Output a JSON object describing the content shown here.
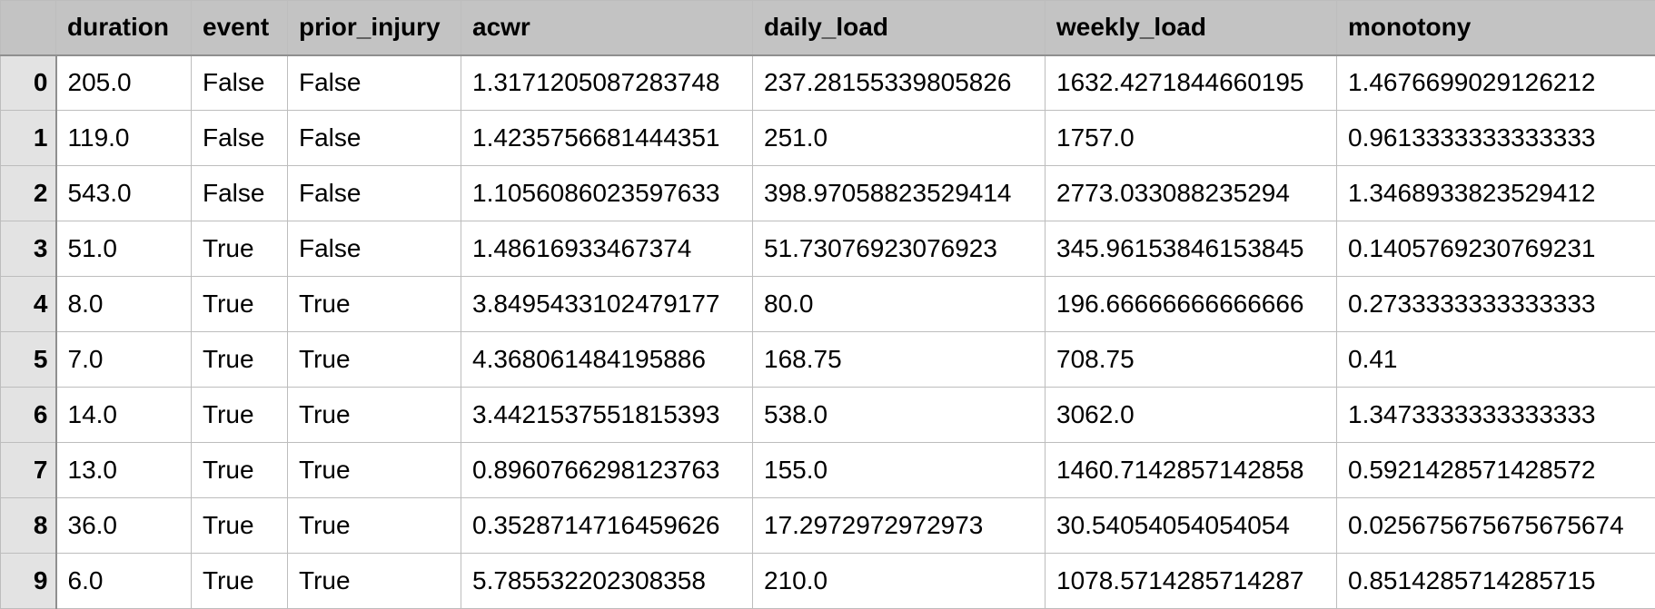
{
  "table": {
    "index_header": "",
    "columns": [
      "duration",
      "event",
      "prior_injury",
      "acwr",
      "daily_load",
      "weekly_load",
      "monotony"
    ],
    "rows": [
      {
        "index": "0",
        "cells": [
          "205.0",
          "False",
          "False",
          "1.3171205087283748",
          "237.28155339805826",
          "1632.4271844660195",
          "1.4676699029126212"
        ]
      },
      {
        "index": "1",
        "cells": [
          "119.0",
          "False",
          "False",
          "1.4235756681444351",
          "251.0",
          "1757.0",
          "0.9613333333333333"
        ]
      },
      {
        "index": "2",
        "cells": [
          "543.0",
          "False",
          "False",
          "1.1056086023597633",
          "398.97058823529414",
          "2773.033088235294",
          "1.3468933823529412"
        ]
      },
      {
        "index": "3",
        "cells": [
          "51.0",
          "True",
          "False",
          "1.48616933467374",
          "51.73076923076923",
          "345.96153846153845",
          "0.1405769230769231"
        ]
      },
      {
        "index": "4",
        "cells": [
          "8.0",
          "True",
          "True",
          "3.8495433102479177",
          "80.0",
          "196.66666666666666",
          "0.2733333333333333"
        ]
      },
      {
        "index": "5",
        "cells": [
          "7.0",
          "True",
          "True",
          "4.368061484195886",
          "168.75",
          "708.75",
          "0.41"
        ]
      },
      {
        "index": "6",
        "cells": [
          "14.0",
          "True",
          "True",
          "3.4421537551815393",
          "538.0",
          "3062.0",
          "1.3473333333333333"
        ]
      },
      {
        "index": "7",
        "cells": [
          "13.0",
          "True",
          "True",
          "0.8960766298123763",
          "155.0",
          "1460.7142857142858",
          "0.5921428571428572"
        ]
      },
      {
        "index": "8",
        "cells": [
          "36.0",
          "True",
          "True",
          "0.3528714716459626",
          "17.2972972972973",
          "30.54054054054054",
          "0.025675675675675674"
        ]
      },
      {
        "index": "9",
        "cells": [
          "6.0",
          "True",
          "True",
          "5.785532202308358",
          "210.0",
          "1078.5714285714287",
          "0.8514285714285715"
        ]
      }
    ]
  }
}
